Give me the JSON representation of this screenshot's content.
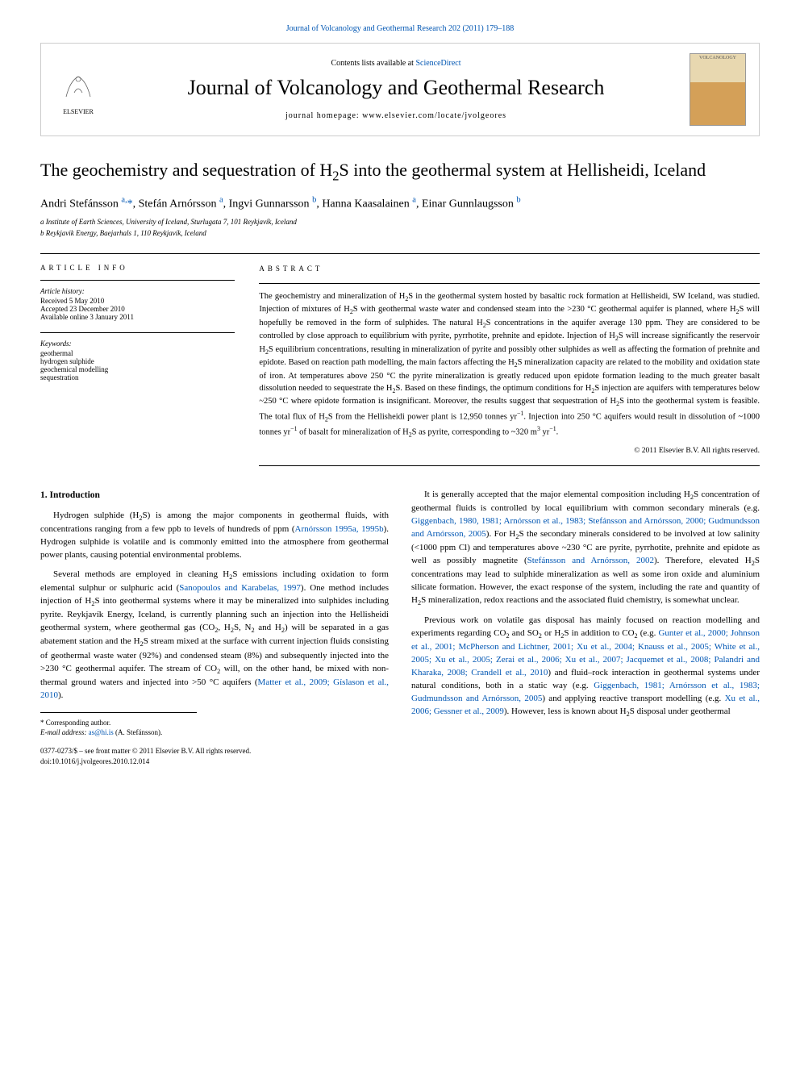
{
  "top_link": {
    "prefix": "",
    "citation": "Journal of Volcanology and Geothermal Research 202 (2011) 179–188"
  },
  "header": {
    "contents_prefix": "Contents lists available at ",
    "contents_link": "ScienceDirect",
    "journal_name": "Journal of Volcanology and Geothermal Research",
    "homepage_prefix": "journal homepage: ",
    "homepage_url": "www.elsevier.com/locate/jvolgeores",
    "publisher_label": "ELSEVIER",
    "cover_text": "VOLCANOLOGY"
  },
  "article": {
    "title_html": "The geochemistry and sequestration of H<sub>2</sub>S into the geothermal system at Hellisheidi, Iceland",
    "authors_html": "Andri Stefánsson <a href='#'><sup>a,</sup></a><a href='#'>*</a>, Stefán Arnórsson <a href='#'><sup>a</sup></a>, Ingvi Gunnarsson <a href='#'><sup>b</sup></a>, Hanna Kaasalainen <a href='#'><sup>a</sup></a>, Einar Gunnlaugsson <a href='#'><sup>b</sup></a>",
    "affiliations": [
      "a Institute of Earth Sciences, University of Iceland, Sturlugata 7, 101 Reykjavík, Iceland",
      "b Reykjavik Energy, Baejarhals 1, 110 Reykjavík, Iceland"
    ]
  },
  "info": {
    "label": "ARTICLE INFO",
    "history_hdr": "Article history:",
    "history": [
      "Received 5 May 2010",
      "Accepted 23 December 2010",
      "Available online 3 January 2011"
    ],
    "keywords_hdr": "Keywords:",
    "keywords": [
      "geothermal",
      "hydrogen sulphide",
      "geochemical modelling",
      "sequestration"
    ]
  },
  "abstract": {
    "label": "ABSTRACT",
    "text_html": "The geochemistry and mineralization of H<sub>2</sub>S in the geothermal system hosted by basaltic rock formation at Hellisheidi, SW Iceland, was studied. Injection of mixtures of H<sub>2</sub>S with geothermal waste water and condensed steam into the &gt;230 °C geothermal aquifer is planned, where H<sub>2</sub>S will hopefully be removed in the form of sulphides. The natural H<sub>2</sub>S concentrations in the aquifer average 130 ppm. They are considered to be controlled by close approach to equilibrium with pyrite, pyrrhotite, prehnite and epidote. Injection of H<sub>2</sub>S will increase significantly the reservoir H<sub>2</sub>S equilibrium concentrations, resulting in mineralization of pyrite and possibly other sulphides as well as affecting the formation of prehnite and epidote. Based on reaction path modelling, the main factors affecting the H<sub>2</sub>S mineralization capacity are related to the mobility and oxidation state of iron. At temperatures above 250 °C the pyrite mineralization is greatly reduced upon epidote formation leading to the much greater basalt dissolution needed to sequestrate the H<sub>2</sub>S. Based on these findings, the optimum conditions for H<sub>2</sub>S injection are aquifers with temperatures below ~250 °C where epidote formation is insignificant. Moreover, the results suggest that sequestration of H<sub>2</sub>S into the geothermal system is feasible. The total flux of H<sub>2</sub>S from the Hellisheidi power plant is 12,950 tonnes yr<sup>−1</sup>. Injection into 250 °C aquifers would result in dissolution of ~1000 tonnes yr<sup>−1</sup> of basalt for mineralization of H<sub>2</sub>S as pyrite, corresponding to ~320 m<sup>3</sup> yr<sup>−1</sup>.",
    "copyright": "© 2011 Elsevier B.V. All rights reserved."
  },
  "body": {
    "section_heading": "1. Introduction",
    "left_paras_html": [
      "Hydrogen sulphide (H<sub>2</sub>S) is among the major components in geothermal fluids, with concentrations ranging from a few ppb to levels of hundreds of ppm (<a href='#'>Arnórsson 1995a, 1995b</a>). Hydrogen sulphide is volatile and is commonly emitted into the atmosphere from geothermal power plants, causing potential environmental problems.",
      "Several methods are employed in cleaning H<sub>2</sub>S emissions including oxidation to form elemental sulphur or sulphuric acid (<a href='#'>Sanopoulos and Karabelas, 1997</a>). One method includes injection of H<sub>2</sub>S into geothermal systems where it may be mineralized into sulphides including pyrite. Reykjavík Energy, Iceland, is currently planning such an injection into the Hellisheidi geothermal system, where geothermal gas (CO<sub>2</sub>, H<sub>2</sub>S, N<sub>2</sub> and H<sub>2</sub>) will be separated in a gas abatement station and the H<sub>2</sub>S stream mixed at the surface with current injection fluids consisting of geothermal waste water (92%) and condensed steam (8%) and subsequently injected into the &gt;230 °C geothermal aquifer. The stream of CO<sub>2</sub> will, on the other hand, be mixed with non-thermal ground waters and injected into &gt;50 °C aquifers (<a href='#'>Matter et al., 2009; Gíslason et al., 2010</a>)."
    ],
    "right_paras_html": [
      "It is generally accepted that the major elemental composition including H<sub>2</sub>S concentration of geothermal fluids is controlled by local equilibrium with common secondary minerals (e.g. <a href='#'>Giggenbach, 1980, 1981; Arnórsson et al., 1983; Stefánsson and Arnórsson, 2000; Gudmundsson and Arnórsson, 2005</a>). For H<sub>2</sub>S the secondary minerals considered to be involved at low salinity (&lt;1000 ppm Cl) and temperatures above ~230 °C are pyrite, pyrrhotite, prehnite and epidote as well as possibly magnetite (<a href='#'>Stefánsson and Arnórsson, 2002</a>). Therefore, elevated H<sub>2</sub>S concentrations may lead to sulphide mineralization as well as some iron oxide and aluminium silicate formation. However, the exact response of the system, including the rate and quantity of H<sub>2</sub>S mineralization, redox reactions and the associated fluid chemistry, is somewhat unclear.",
      "Previous work on volatile gas disposal has mainly focused on reaction modelling and experiments regarding CO<sub>2</sub> and SO<sub>2</sub> or H<sub>2</sub>S in addition to CO<sub>2</sub> (e.g. <a href='#'>Gunter et al., 2000; Johnson et al., 2001; McPherson and Lichtner, 2001; Xu et al., 2004; Knauss et al., 2005; White et al., 2005; Xu et al., 2005; Zerai et al., 2006; Xu et al., 2007; Jacquemet et al., 2008; Palandri and Kharaka, 2008; Crandell et al., 2010</a>) and fluid–rock interaction in geothermal systems under natural conditions, both in a static way (e.g. <a href='#'>Giggenbach, 1981; Arnórsson et al., 1983; Gudmundsson and Arnórsson, 2005</a>) and applying reactive transport modelling (e.g. <a href='#'>Xu et al., 2006; Gessner et al., 2009</a>). However, less is known about H<sub>2</sub>S disposal under geothermal"
    ]
  },
  "footnotes": {
    "corr": "* Corresponding author.",
    "email_label": "E-mail address: ",
    "email": "as@hi.is",
    "email_name": " (A. Stefánsson)."
  },
  "footer": {
    "line1": "0377-0273/$ – see front matter © 2011 Elsevier B.V. All rights reserved.",
    "line2": "doi:10.1016/j.jvolgeores.2010.12.014"
  },
  "colors": {
    "link": "#0056b3",
    "text": "#000000",
    "border": "#cccccc",
    "elsevier_orange": "#ff6600"
  }
}
